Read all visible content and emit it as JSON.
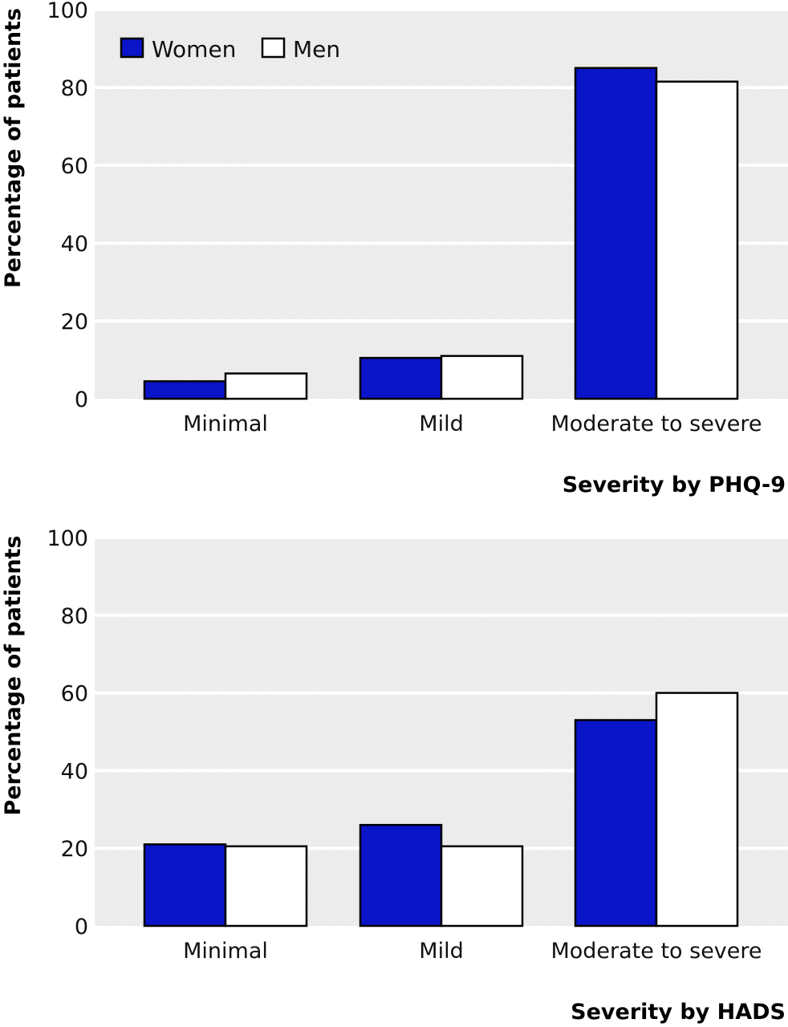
{
  "chart_data": [
    {
      "type": "bar",
      "categories": [
        "Minimal",
        "Mild",
        "Moderate to severe"
      ],
      "series": [
        {
          "name": "Women",
          "values": [
            4.5,
            10.5,
            85
          ]
        },
        {
          "name": "Men",
          "values": [
            6.5,
            11,
            81.5
          ]
        }
      ],
      "xlabel": "Severity by PHQ-9",
      "ylabel": "Percentage of patients",
      "ylim": [
        0,
        100
      ],
      "yticks": [
        0,
        20,
        40,
        60,
        80,
        100
      ],
      "grid": true,
      "legend": "top-left"
    },
    {
      "type": "bar",
      "categories": [
        "Minimal",
        "Mild",
        "Moderate to severe"
      ],
      "series": [
        {
          "name": "Women",
          "values": [
            21,
            26,
            53
          ]
        },
        {
          "name": "Men",
          "values": [
            20.5,
            20.5,
            60
          ]
        }
      ],
      "xlabel": "Severity by HADS",
      "ylabel": "Percentage of patients",
      "ylim": [
        0,
        100
      ],
      "yticks": [
        0,
        20,
        40,
        60,
        80,
        100
      ],
      "grid": true,
      "legend": "none"
    }
  ],
  "colors": {
    "Women": "#0a14c8",
    "Men": "#ffffff",
    "plot_background": "#ececec",
    "grid": "#ffffff",
    "bar_outline": "#000000"
  }
}
